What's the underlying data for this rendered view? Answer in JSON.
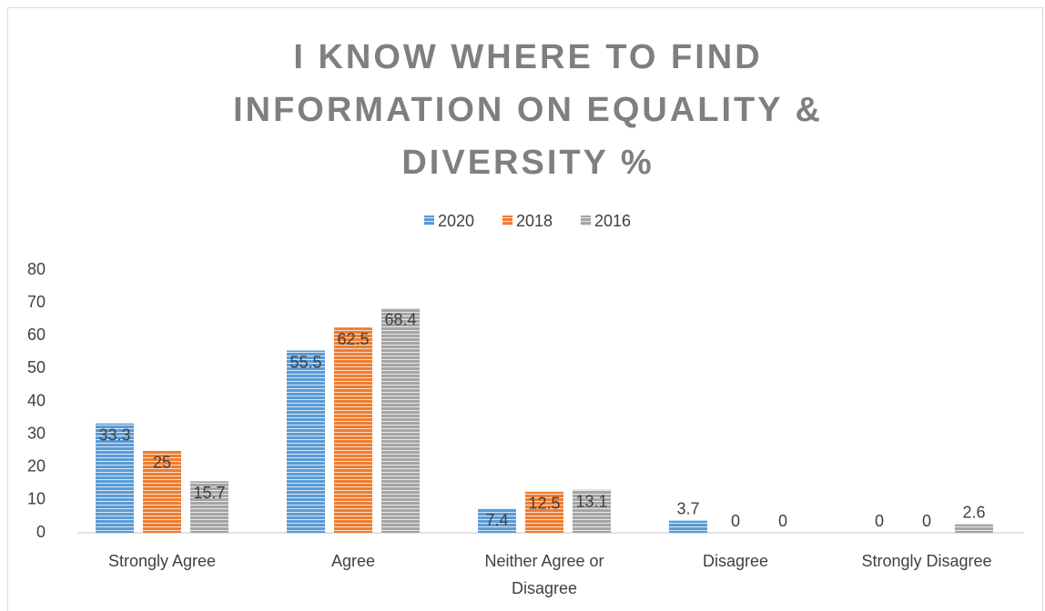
{
  "chart_data": {
    "type": "bar",
    "title": "I KNOW WHERE TO FIND INFORMATION ON EQUALITY & DIVERSITY %",
    "categories": [
      "Strongly Agree",
      "Agree",
      "Neither Agree or Disagree",
      "Disagree",
      "Strongly Disagree"
    ],
    "series": [
      {
        "name": "2020",
        "color": "#5b9bd5",
        "values": [
          33.3,
          55.5,
          7.4,
          3.7,
          0
        ]
      },
      {
        "name": "2018",
        "color": "#ed7d31",
        "values": [
          25,
          62.5,
          12.5,
          0,
          0
        ]
      },
      {
        "name": "2016",
        "color": "#a5a5a5",
        "values": [
          15.7,
          68.4,
          13.1,
          0,
          2.6
        ]
      }
    ],
    "ylim": [
      0,
      80
    ],
    "yticks": [
      0,
      10,
      20,
      30,
      40,
      50,
      60,
      70,
      80
    ],
    "grid": false,
    "legend": "top"
  }
}
